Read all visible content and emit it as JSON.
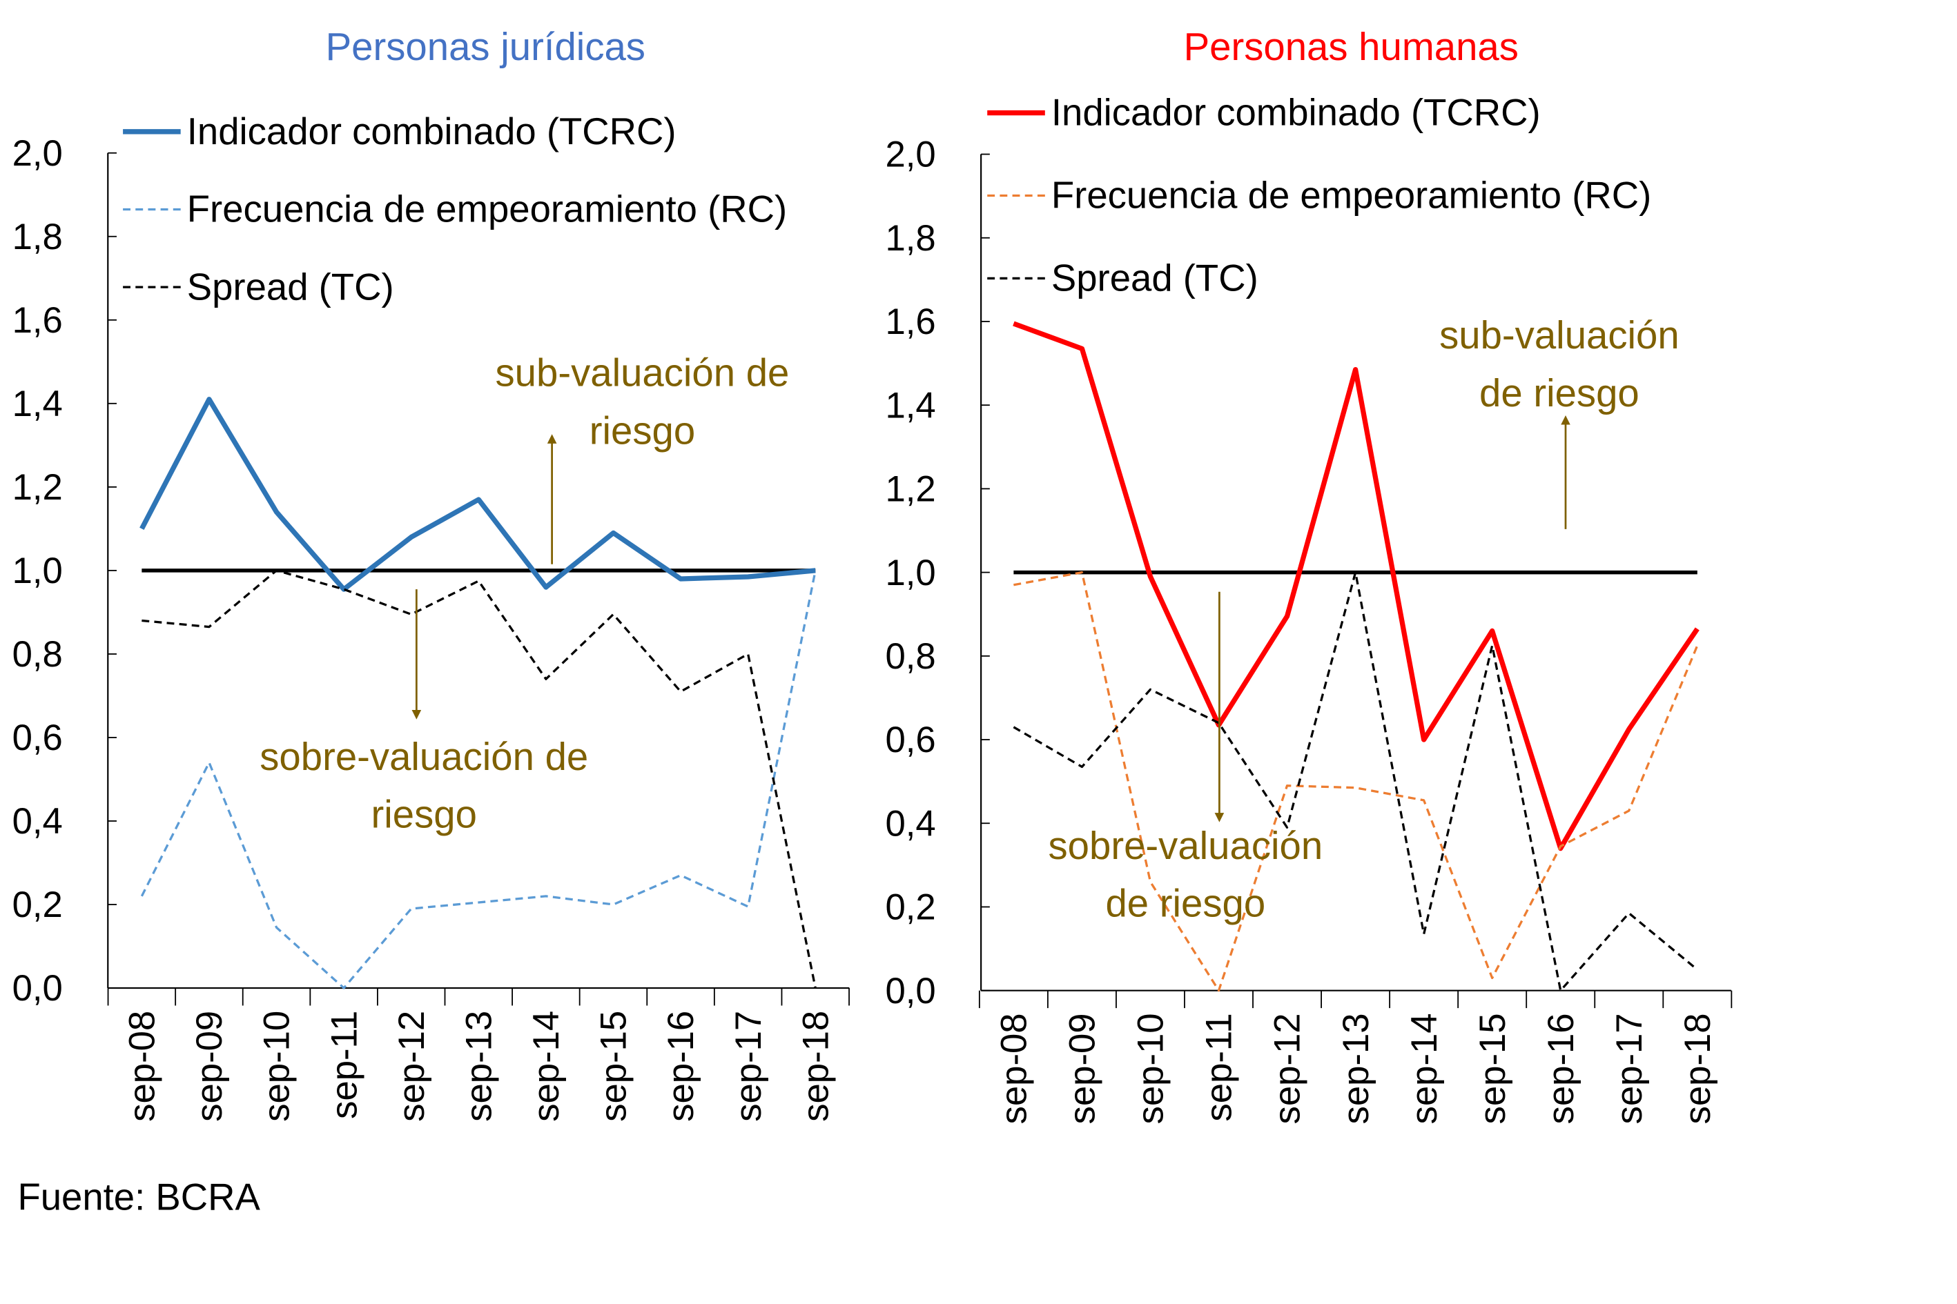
{
  "source": "Fuente:  BCRA",
  "annotation_colour": "#7F6000",
  "chart_data": [
    {
      "type": "line",
      "title": "Personas jurídicas",
      "title_color": "#4472C4",
      "categories": [
        "sep-08",
        "sep-09",
        "sep-10",
        "sep-11",
        "sep-12",
        "sep-13",
        "sep-14",
        "sep-15",
        "sep-16",
        "sep-17",
        "sep-18"
      ],
      "ylim": [
        0,
        2.0
      ],
      "yticks": [
        "0,0",
        "0,2",
        "0,4",
        "0,6",
        "0,8",
        "1,0",
        "1,2",
        "1,4",
        "1,6",
        "1,8",
        "2,0"
      ],
      "reference_line": 1.0,
      "grid": false,
      "legend_position": "top",
      "series": [
        {
          "name": "Indicador combinado (TCRC)",
          "color": "#2E75B6",
          "style": "solid",
          "values": [
            1.1,
            1.41,
            1.14,
            0.955,
            1.08,
            1.17,
            0.96,
            1.09,
            0.98,
            0.985,
            1.0
          ]
        },
        {
          "name": "Frecuencia de empeoramiento (RC)",
          "color": "#5B9BD5",
          "style": "dashed",
          "values": [
            0.22,
            0.54,
            0.145,
            0.0,
            0.19,
            0.205,
            0.22,
            0.2,
            0.27,
            0.195,
            1.0
          ]
        },
        {
          "name": "Spread (TC)",
          "color": "#000000",
          "style": "dashed",
          "values": [
            0.88,
            0.865,
            1.0,
            0.955,
            0.895,
            0.975,
            0.74,
            0.895,
            0.71,
            0.8,
            0.0
          ]
        }
      ],
      "annotations": {
        "up": [
          "sub-valuación de",
          "riesgo"
        ],
        "down": [
          "sobre-valuación de",
          "riesgo"
        ]
      }
    },
    {
      "type": "line",
      "title": "Personas humanas",
      "title_color": "#FF0000",
      "categories": [
        "sep-08",
        "sep-09",
        "sep-10",
        "sep-11",
        "sep-12",
        "sep-13",
        "sep-14",
        "sep-15",
        "sep-16",
        "sep-17",
        "sep-18"
      ],
      "ylim": [
        0,
        2.0
      ],
      "yticks": [
        "0,0",
        "0,2",
        "0,4",
        "0,6",
        "0,8",
        "1,0",
        "1,2",
        "1,4",
        "1,6",
        "1,8",
        "2,0"
      ],
      "reference_line": 1.0,
      "grid": false,
      "legend_position": "top",
      "series": [
        {
          "name": "Indicador combinado (TCRC)",
          "color": "#FF0000",
          "style": "solid",
          "values": [
            1.595,
            1.535,
            0.99,
            0.635,
            0.895,
            1.485,
            0.6,
            0.86,
            0.34,
            0.625,
            0.865
          ]
        },
        {
          "name": "Frecuencia de empeoramiento (RC)",
          "color": "#ED7D31",
          "style": "dashed",
          "values": [
            0.97,
            1.0,
            0.26,
            0.0,
            0.49,
            0.485,
            0.455,
            0.03,
            0.345,
            0.43,
            0.825
          ]
        },
        {
          "name": "Spread (TC)",
          "color": "#000000",
          "style": "dashed",
          "values": [
            0.63,
            0.535,
            0.72,
            0.64,
            0.39,
            1.0,
            0.135,
            0.825,
            0.0,
            0.185,
            0.05
          ]
        }
      ],
      "annotations": {
        "up": [
          "sub-valuación",
          "de riesgo"
        ],
        "down": [
          "sobre-valuación",
          "de riesgo"
        ]
      }
    }
  ]
}
